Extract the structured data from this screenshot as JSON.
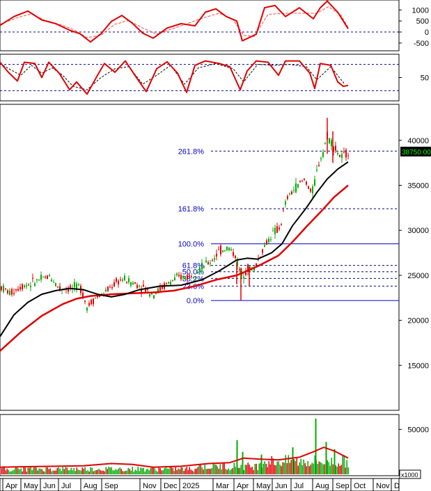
{
  "chart_data": {
    "type": "candlestick",
    "months": [
      "Apr",
      "May",
      "Jun",
      "Jul",
      "Aug",
      "Sep",
      "Nov",
      "Dec",
      "2025",
      "Mar",
      "Apr",
      "May",
      "Jun",
      "Jul",
      "Aug",
      "Sep",
      "Oct",
      "Nov",
      "D"
    ],
    "price_panel": {
      "y_ticks": [
        40000,
        35000,
        30000,
        25000,
        20000,
        15000
      ],
      "ylim": [
        10000,
        44000
      ],
      "last_price_label": "38750.00",
      "last_price": 38750,
      "fib_levels": [
        {
          "label": "261.8%",
          "value": 38800,
          "style": "dashed"
        },
        {
          "label": "161.8%",
          "value": 32400,
          "style": "dashed"
        },
        {
          "label": "100.0%",
          "value": 28500,
          "style": "solid"
        },
        {
          "label": "61.8%",
          "value": 26100,
          "style": "dashed"
        },
        {
          "label": "50.0%",
          "value": 25400,
          "style": "dashed"
        },
        {
          "label": "38.2%",
          "value": 24650,
          "style": "dashed"
        },
        {
          "label": "23.6%",
          "value": 23800,
          "style": "dashed"
        },
        {
          "label": "0.0%",
          "value": 22200,
          "style": "solid"
        }
      ],
      "ma_short": [
        [
          0,
          18200
        ],
        [
          20,
          20600
        ],
        [
          40,
          22000
        ],
        [
          60,
          22900
        ],
        [
          80,
          23300
        ],
        [
          100,
          23550
        ],
        [
          120,
          23400
        ],
        [
          140,
          22900
        ],
        [
          160,
          22600
        ],
        [
          180,
          22900
        ],
        [
          200,
          23400
        ],
        [
          230,
          23800
        ],
        [
          260,
          23900
        ],
        [
          290,
          24500
        ],
        [
          315,
          25500
        ],
        [
          340,
          26700
        ],
        [
          355,
          26900
        ],
        [
          370,
          26800
        ],
        [
          390,
          27500
        ],
        [
          405,
          28500
        ],
        [
          420,
          30500
        ],
        [
          440,
          32500
        ],
        [
          455,
          34200
        ],
        [
          470,
          35700
        ],
        [
          485,
          36800
        ],
        [
          500,
          37600
        ]
      ],
      "ma_long": [
        [
          0,
          16600
        ],
        [
          30,
          18700
        ],
        [
          60,
          20500
        ],
        [
          90,
          21800
        ],
        [
          110,
          22400
        ],
        [
          130,
          22700
        ],
        [
          160,
          22900
        ],
        [
          190,
          23000
        ],
        [
          220,
          23100
        ],
        [
          250,
          23300
        ],
        [
          280,
          23800
        ],
        [
          310,
          24500
        ],
        [
          340,
          25000
        ],
        [
          370,
          26000
        ],
        [
          400,
          27200
        ],
        [
          420,
          28700
        ],
        [
          440,
          30400
        ],
        [
          460,
          32000
        ],
        [
          480,
          33700
        ],
        [
          500,
          35000
        ]
      ],
      "candle_path": [
        [
          0,
          23800
        ],
        [
          15,
          23000
        ],
        [
          30,
          23800
        ],
        [
          45,
          24100
        ],
        [
          60,
          24600
        ],
        [
          72,
          24900
        ],
        [
          85,
          23600
        ],
        [
          100,
          23500
        ],
        [
          115,
          23800
        ],
        [
          125,
          21500
        ],
        [
          135,
          22400
        ],
        [
          150,
          23000
        ],
        [
          162,
          23900
        ],
        [
          175,
          24600
        ],
        [
          190,
          24200
        ],
        [
          205,
          23700
        ],
        [
          220,
          22900
        ],
        [
          232,
          23600
        ],
        [
          245,
          24300
        ],
        [
          258,
          24800
        ],
        [
          272,
          24900
        ],
        [
          288,
          25800
        ],
        [
          302,
          26500
        ],
        [
          315,
          27700
        ],
        [
          328,
          28100
        ],
        [
          338,
          27200
        ],
        [
          346,
          25000
        ],
        [
          355,
          25800
        ],
        [
          365,
          25700
        ],
        [
          378,
          28000
        ],
        [
          390,
          29500
        ],
        [
          402,
          30300
        ],
        [
          412,
          33500
        ],
        [
          425,
          34800
        ],
        [
          438,
          35700
        ],
        [
          448,
          34000
        ],
        [
          458,
          37500
        ],
        [
          465,
          39000
        ],
        [
          470,
          40500
        ],
        [
          478,
          39500
        ],
        [
          490,
          38000
        ],
        [
          500,
          38750
        ]
      ],
      "candles_seed": 7
    },
    "indicator_1": {
      "y_ticks": [
        1000,
        500,
        0,
        -500
      ],
      "ylim": [
        -850,
        1450
      ],
      "reference": 0,
      "series": [
        [
          0,
          300
        ],
        [
          20,
          700
        ],
        [
          40,
          950
        ],
        [
          60,
          550
        ],
        [
          80,
          380
        ],
        [
          100,
          80
        ],
        [
          115,
          -80
        ],
        [
          130,
          -450
        ],
        [
          145,
          -80
        ],
        [
          160,
          480
        ],
        [
          175,
          750
        ],
        [
          190,
          400
        ],
        [
          205,
          -50
        ],
        [
          220,
          -280
        ],
        [
          240,
          180
        ],
        [
          260,
          380
        ],
        [
          280,
          280
        ],
        [
          295,
          900
        ],
        [
          310,
          1050
        ],
        [
          325,
          700
        ],
        [
          340,
          500
        ],
        [
          348,
          -400
        ],
        [
          358,
          -250
        ],
        [
          368,
          -100
        ],
        [
          380,
          1100
        ],
        [
          395,
          1200
        ],
        [
          410,
          700
        ],
        [
          430,
          1100
        ],
        [
          450,
          600
        ],
        [
          460,
          1100
        ],
        [
          470,
          1400
        ],
        [
          485,
          900
        ],
        [
          500,
          150
        ]
      ],
      "signal": [
        [
          0,
          350
        ],
        [
          25,
          650
        ],
        [
          45,
          820
        ],
        [
          65,
          520
        ],
        [
          85,
          350
        ],
        [
          105,
          120
        ],
        [
          125,
          -250
        ],
        [
          145,
          -150
        ],
        [
          165,
          350
        ],
        [
          185,
          520
        ],
        [
          205,
          180
        ],
        [
          225,
          -100
        ],
        [
          245,
          120
        ],
        [
          265,
          330
        ],
        [
          290,
          620
        ],
        [
          315,
          850
        ],
        [
          335,
          550
        ],
        [
          350,
          -150
        ],
        [
          365,
          -200
        ],
        [
          385,
          800
        ],
        [
          410,
          850
        ],
        [
          435,
          850
        ],
        [
          455,
          850
        ],
        [
          472,
          1150
        ],
        [
          490,
          750
        ],
        [
          500,
          200
        ]
      ]
    },
    "indicator_2": {
      "y_ticks": [
        50
      ],
      "ylim": [
        0,
        100
      ],
      "levels": [
        80,
        20
      ],
      "series": [
        [
          0,
          85
        ],
        [
          12,
          62
        ],
        [
          25,
          42
        ],
        [
          35,
          85
        ],
        [
          50,
          82
        ],
        [
          60,
          50
        ],
        [
          70,
          85
        ],
        [
          85,
          60
        ],
        [
          100,
          22
        ],
        [
          110,
          40
        ],
        [
          125,
          12
        ],
        [
          140,
          55
        ],
        [
          150,
          82
        ],
        [
          165,
          62
        ],
        [
          180,
          88
        ],
        [
          195,
          52
        ],
        [
          210,
          18
        ],
        [
          225,
          70
        ],
        [
          240,
          86
        ],
        [
          255,
          60
        ],
        [
          268,
          16
        ],
        [
          280,
          78
        ],
        [
          295,
          88
        ],
        [
          315,
          82
        ],
        [
          330,
          75
        ],
        [
          345,
          22
        ],
        [
          355,
          65
        ],
        [
          368,
          88
        ],
        [
          385,
          85
        ],
        [
          400,
          55
        ],
        [
          410,
          88
        ],
        [
          430,
          88
        ],
        [
          445,
          60
        ],
        [
          452,
          25
        ],
        [
          460,
          82
        ],
        [
          475,
          78
        ],
        [
          485,
          40
        ],
        [
          493,
          30
        ],
        [
          500,
          32
        ]
      ],
      "signal": [
        [
          0,
          82
        ],
        [
          15,
          68
        ],
        [
          30,
          55
        ],
        [
          45,
          78
        ],
        [
          60,
          60
        ],
        [
          75,
          72
        ],
        [
          90,
          55
        ],
        [
          105,
          30
        ],
        [
          125,
          22
        ],
        [
          145,
          50
        ],
        [
          165,
          70
        ],
        [
          185,
          75
        ],
        [
          205,
          35
        ],
        [
          225,
          55
        ],
        [
          245,
          78
        ],
        [
          265,
          35
        ],
        [
          285,
          72
        ],
        [
          310,
          82
        ],
        [
          335,
          70
        ],
        [
          350,
          40
        ],
        [
          370,
          80
        ],
        [
          395,
          78
        ],
        [
          415,
          80
        ],
        [
          440,
          75
        ],
        [
          455,
          45
        ],
        [
          475,
          75
        ],
        [
          495,
          35
        ]
      ]
    },
    "volume_panel": {
      "y_ticks": [
        50000
      ],
      "unit_label": "x1000",
      "ylim": [
        0,
        65000
      ],
      "ma_volume": [
        [
          0,
          8000
        ],
        [
          40,
          8500
        ],
        [
          80,
          9000
        ],
        [
          120,
          9500
        ],
        [
          160,
          12000
        ],
        [
          190,
          11000
        ],
        [
          220,
          8000
        ],
        [
          260,
          9000
        ],
        [
          300,
          12000
        ],
        [
          330,
          13000
        ],
        [
          350,
          18000
        ],
        [
          370,
          17000
        ],
        [
          400,
          16000
        ],
        [
          430,
          19000
        ],
        [
          450,
          25000
        ],
        [
          465,
          30000
        ],
        [
          480,
          26000
        ],
        [
          500,
          18000
        ]
      ],
      "spikes": [
        [
          340,
          38000
        ],
        [
          348,
          25000
        ],
        [
          375,
          22000
        ],
        [
          420,
          30000
        ],
        [
          453,
          62000
        ],
        [
          468,
          36000
        ],
        [
          480,
          28000
        ]
      ]
    }
  }
}
